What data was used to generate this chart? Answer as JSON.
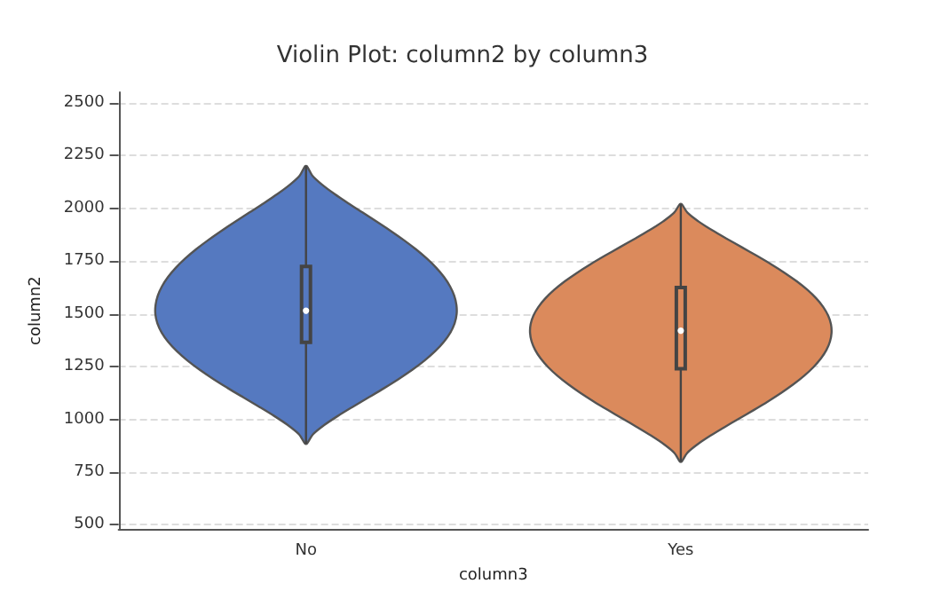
{
  "chart_data": {
    "type": "box",
    "title": "Violin Plot: column2 by column3",
    "xlabel": "column3",
    "ylabel": "column2",
    "categories": [
      "No",
      "Yes"
    ],
    "boxes": [
      {
        "low": 885,
        "q1": 1365,
        "median": 1515,
        "q3": 1725,
        "high": 2200
      },
      {
        "low": 800,
        "q1": 1240,
        "median": 1420,
        "q3": 1625,
        "high": 2020
      }
    ],
    "colors": [
      "#5579c0",
      "#db8a5c"
    ],
    "ylim": [
      480,
      2550
    ],
    "yticks": [
      500,
      750,
      1000,
      1250,
      1500,
      1750,
      2000,
      2250,
      2500
    ],
    "grid": "y"
  }
}
